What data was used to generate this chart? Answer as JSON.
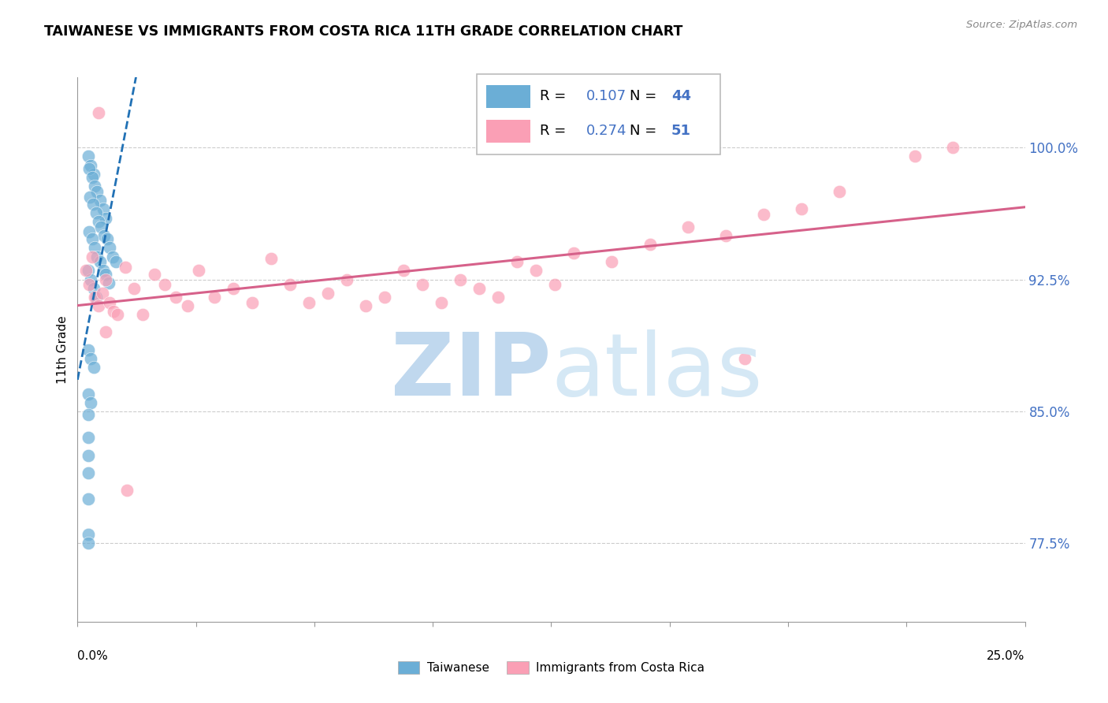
{
  "title": "TAIWANESE VS IMMIGRANTS FROM COSTA RICA 11TH GRADE CORRELATION CHART",
  "source": "Source: ZipAtlas.com",
  "ylabel": "11th Grade",
  "x_range": [
    0.0,
    25.0
  ],
  "y_range": [
    73.0,
    104.0
  ],
  "y_ticks": [
    77.5,
    85.0,
    92.5,
    100.0
  ],
  "y_tick_labels": [
    "77.5%",
    "85.0%",
    "92.5%",
    "100.0%"
  ],
  "x_ticks": [
    0,
    3.125,
    6.25,
    9.375,
    12.5,
    15.625,
    18.75,
    21.875,
    25.0
  ],
  "r_blue": 0.107,
  "n_blue": 44,
  "r_pink": 0.274,
  "n_pink": 51,
  "blue_color": "#6baed6",
  "pink_color": "#fa9fb5",
  "blue_line_color": "#2171b5",
  "pink_line_color": "#d6618a",
  "label_color": "#4472c4",
  "watermark_zip_color": "#c5dff0",
  "watermark_atlas_color": "#daedf8",
  "blue_x": [
    0.28,
    0.35,
    0.42,
    0.3,
    0.38,
    0.45,
    0.52,
    0.6,
    0.68,
    0.75,
    0.32,
    0.4,
    0.48,
    0.55,
    0.62,
    0.7,
    0.78,
    0.85,
    0.92,
    1.0,
    0.3,
    0.38,
    0.45,
    0.52,
    0.6,
    0.67,
    0.75,
    0.82,
    0.28,
    0.35,
    0.42,
    0.5,
    0.28,
    0.35,
    0.42,
    0.28,
    0.35,
    0.28,
    0.28,
    0.28,
    0.28,
    0.28,
    0.28,
    0.28
  ],
  "blue_y": [
    99.5,
    99.0,
    98.5,
    98.8,
    98.3,
    97.8,
    97.5,
    97.0,
    96.5,
    96.0,
    97.2,
    96.8,
    96.3,
    95.8,
    95.5,
    95.0,
    94.8,
    94.3,
    93.8,
    93.5,
    95.2,
    94.8,
    94.3,
    93.8,
    93.5,
    93.0,
    92.8,
    92.3,
    93.0,
    92.5,
    92.0,
    91.5,
    88.5,
    88.0,
    87.5,
    86.0,
    85.5,
    84.8,
    83.5,
    82.5,
    81.5,
    80.0,
    78.0,
    77.5
  ],
  "pink_x": [
    0.22,
    0.3,
    0.38,
    0.45,
    0.55,
    0.65,
    0.75,
    0.85,
    0.95,
    1.05,
    1.25,
    1.48,
    1.72,
    2.02,
    2.3,
    2.6,
    2.9,
    3.2,
    3.6,
    4.1,
    4.6,
    5.1,
    5.6,
    6.1,
    6.6,
    7.1,
    7.6,
    8.1,
    8.6,
    9.1,
    9.6,
    10.1,
    10.6,
    11.1,
    11.6,
    12.1,
    12.6,
    13.1,
    14.1,
    15.1,
    16.1,
    17.1,
    18.1,
    19.1,
    20.1,
    22.1,
    23.1,
    17.6,
    0.55,
    0.75,
    1.3
  ],
  "pink_y": [
    93.0,
    92.2,
    93.8,
    91.5,
    91.0,
    91.7,
    92.5,
    91.2,
    90.7,
    90.5,
    93.2,
    92.0,
    90.5,
    92.8,
    92.2,
    91.5,
    91.0,
    93.0,
    91.5,
    92.0,
    91.2,
    93.7,
    92.2,
    91.2,
    91.7,
    92.5,
    91.0,
    91.5,
    93.0,
    92.2,
    91.2,
    92.5,
    92.0,
    91.5,
    93.5,
    93.0,
    92.2,
    94.0,
    93.5,
    94.5,
    95.5,
    95.0,
    96.2,
    96.5,
    97.5,
    99.5,
    100.0,
    88.0,
    102.0,
    89.5,
    80.5
  ]
}
